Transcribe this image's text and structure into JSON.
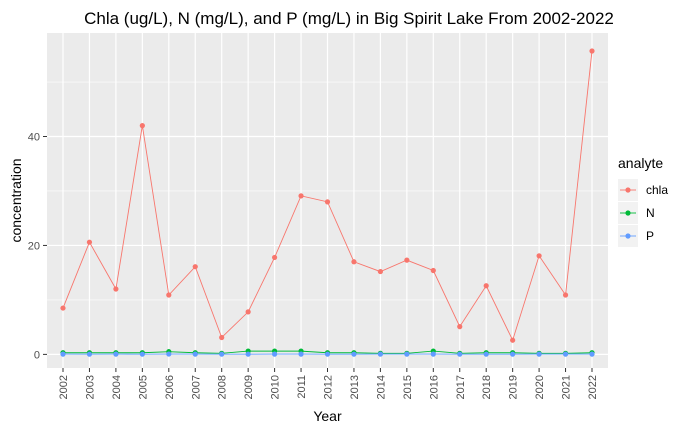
{
  "chart_data": {
    "type": "line",
    "title": "Chla (ug/L), N (mg/L), and P (mg/L) in Big Spirit Lake From 2002-2022",
    "xlabel": "Year",
    "ylabel": "concentration",
    "categories": [
      "2002",
      "2003",
      "2004",
      "2005",
      "2006",
      "2007",
      "2008",
      "2009",
      "2010",
      "2011",
      "2012",
      "2013",
      "2014",
      "2015",
      "2016",
      "2017",
      "2018",
      "2019",
      "2020",
      "2021",
      "2022"
    ],
    "ylim": [
      -2.5,
      59
    ],
    "yticks": [
      0,
      20,
      40
    ],
    "grid": true,
    "legend": {
      "title": "analyte",
      "position": "right"
    },
    "series": [
      {
        "name": "chla",
        "color": "#F8766D",
        "values": [
          8.5,
          20.6,
          12.0,
          42.0,
          10.9,
          16.1,
          3.1,
          7.8,
          17.8,
          29.1,
          28.0,
          17.0,
          15.2,
          17.3,
          15.4,
          5.1,
          12.6,
          2.6,
          18.1,
          10.9,
          55.7
        ]
      },
      {
        "name": "N",
        "color": "#00BA38",
        "values": [
          0.3,
          0.3,
          0.3,
          0.3,
          0.5,
          0.3,
          0.2,
          0.6,
          0.6,
          0.6,
          0.3,
          0.3,
          0.2,
          0.2,
          0.6,
          0.2,
          0.3,
          0.3,
          0.2,
          0.2,
          0.3
        ]
      },
      {
        "name": "P",
        "color": "#619CFF",
        "values": [
          0.05,
          0.04,
          0.05,
          0.04,
          0.06,
          0.05,
          0.04,
          0.04,
          0.05,
          0.05,
          0.04,
          0.04,
          0.05,
          0.05,
          0.05,
          0.04,
          0.04,
          0.04,
          0.05,
          0.05,
          0.05
        ]
      }
    ]
  }
}
